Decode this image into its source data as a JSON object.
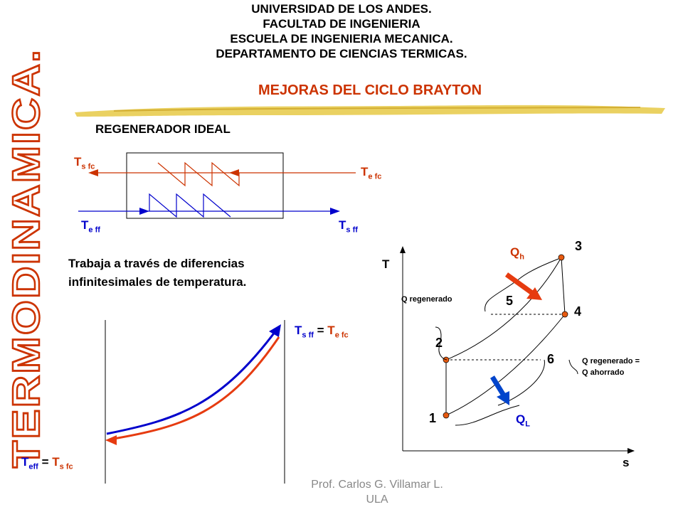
{
  "header": {
    "line1": "UNIVERSIDAD DE LOS ANDES.",
    "line2": "FACULTAD DE INGENIERIA",
    "line3": "ESCUELA DE INGENIERIA MECANICA.",
    "line4": "DEPARTAMENTO DE CIENCIAS TERMICAS."
  },
  "subtitle": "MEJORAS DEL CICLO BRAYTON",
  "side_title": "TERMODINAMICA.",
  "regenerator": {
    "title": "REGENERADOR IDEAL",
    "t_s_fc_main": "T",
    "t_s_fc_sub": "s fc",
    "t_e_fc_main": "T",
    "t_e_fc_sub": "e fc",
    "t_e_ff_main": "T",
    "t_e_ff_sub": "e ff",
    "t_s_ff_main": "T",
    "t_s_ff_sub": "s ff"
  },
  "description": {
    "line1": "Trabaja a través de diferencias",
    "line2": "infinitesimales de temperatura."
  },
  "temp_plot": {
    "top_t1": "T",
    "top_s1": "s ff",
    "eq": "=",
    "top_t2": "T",
    "top_s2": "e fc",
    "bot_t1": "T",
    "bot_s1": "eff",
    "bot_t2": "T",
    "bot_s2": "s fc"
  },
  "ts_diagram": {
    "y_axis": "T",
    "x_axis": "s",
    "points": [
      "1",
      "2",
      "3",
      "4",
      "5",
      "6"
    ],
    "qh_main": "Q",
    "qh_sub": "h",
    "ql_main": "Q",
    "ql_sub": "L",
    "q_regenerado": "Q regenerado",
    "q_regen_eq_1": "Q regenerado   =",
    "q_regen_eq_2": "Q ahorrado"
  },
  "footer": {
    "line1": "Prof. Carlos G. Villamar L.",
    "line2": "ULA"
  },
  "colors": {
    "accent_red": "#cc3300",
    "blue": "#0000cc",
    "header_text": "#000000",
    "brush_gold": "#e0c040"
  }
}
